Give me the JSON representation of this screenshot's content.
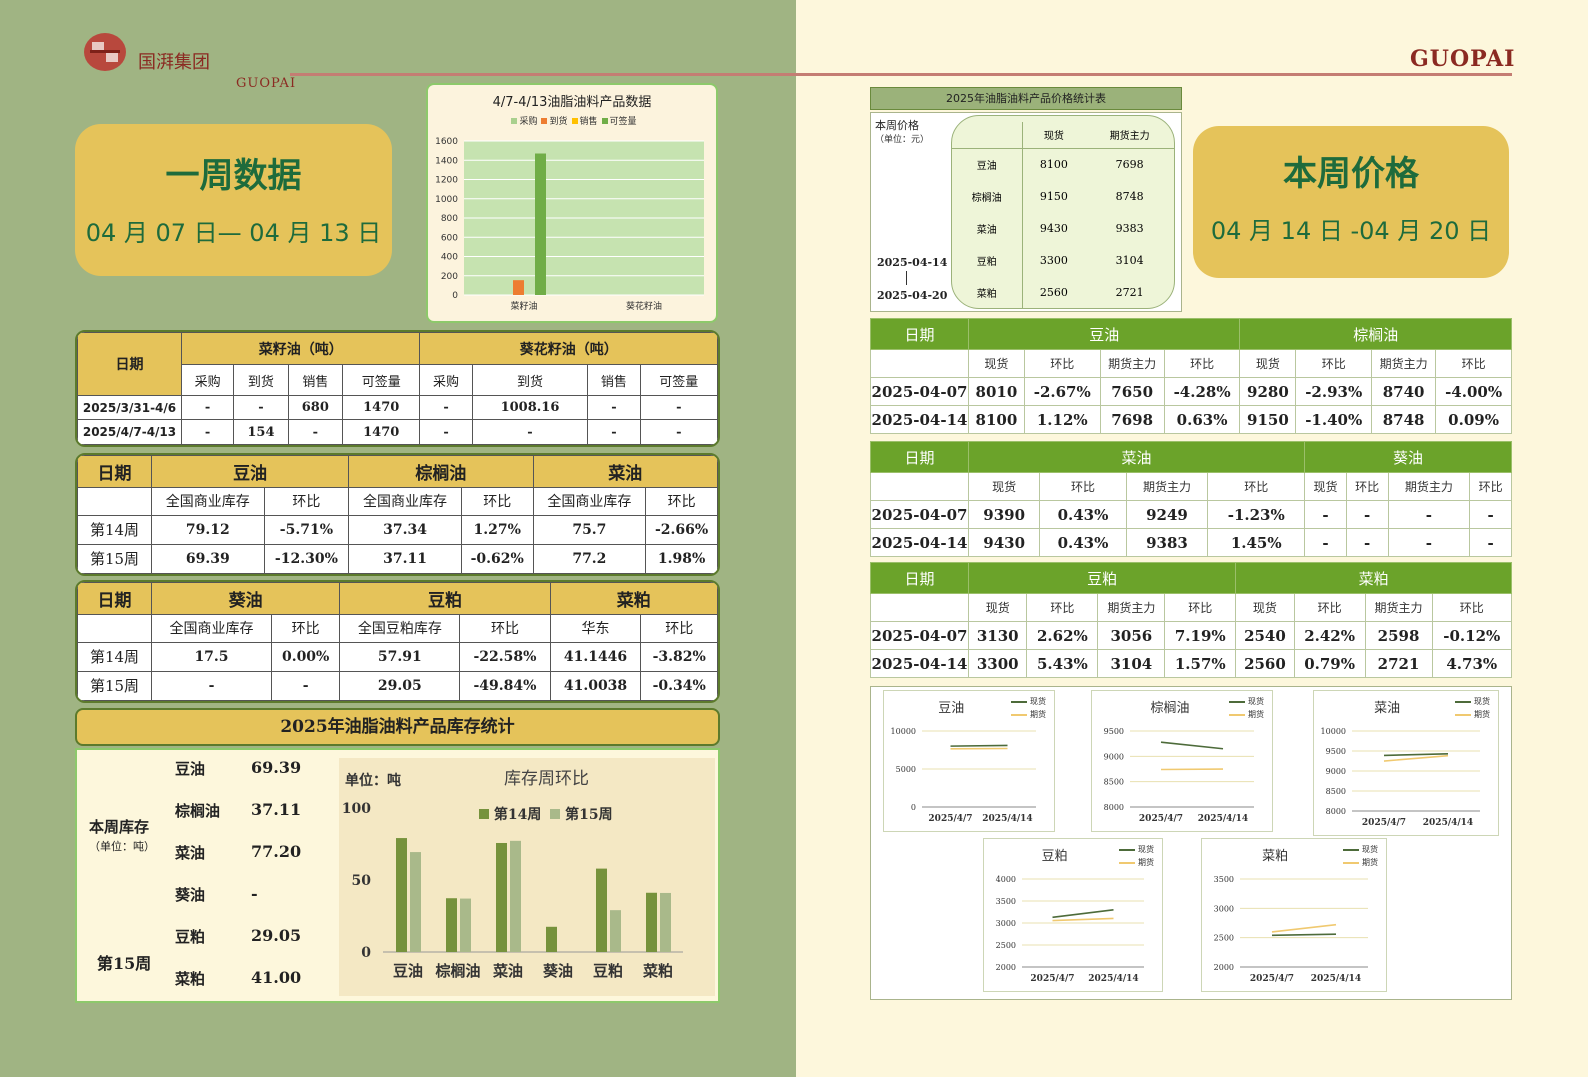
{
  "header": {
    "brand_cn": "国湃集团",
    "brand_en": "GUOPAI",
    "brand_right": "GUOPAI"
  },
  "week_badge": {
    "title": "一周数据",
    "dates": "04 月 07 日— 04 月 13 日"
  },
  "price_badge": {
    "title": "本周价格",
    "dates": "04 月 14 日 -04 月 20 日"
  },
  "product_chart": {
    "title": "4/7-4/13油脂油料产品数据",
    "legend": [
      "采购",
      "到货",
      "销售",
      "可签量"
    ],
    "colors": [
      "#a9d08e",
      "#ed7d31",
      "#ffc000",
      "#70ad47"
    ],
    "yticks": [
      "1600",
      "1400",
      "1200",
      "1000",
      "800",
      "600",
      "400",
      "200",
      "0"
    ],
    "chart_data": {
      "type": "bar",
      "categories": [
        "菜籽油",
        "葵花籽油"
      ],
      "series": [
        {
          "name": "采购",
          "values": [
            0,
            0
          ]
        },
        {
          "name": "到货",
          "values": [
            154,
            0
          ]
        },
        {
          "name": "销售",
          "values": [
            0,
            0
          ]
        },
        {
          "name": "可签量",
          "values": [
            1470,
            0
          ]
        }
      ],
      "ylim": [
        0,
        1600
      ]
    }
  },
  "trade_table": {
    "date_label": "日期",
    "group1": "菜籽油（吨）",
    "group2": "葵花籽油（吨）",
    "cols": [
      "采购",
      "到货",
      "销售",
      "可签量",
      "采购",
      "到货",
      "销售",
      "可签量"
    ],
    "rows": [
      {
        "date": "2025/3/31-4/6",
        "cells": [
          "-",
          "-",
          "680",
          "1470",
          "-",
          "1008.16",
          "-",
          "-"
        ]
      },
      {
        "date": "2025/4/7-4/13",
        "cells": [
          "-",
          "154",
          "-",
          "1470",
          "-",
          "-",
          "-",
          "-"
        ]
      }
    ]
  },
  "stock_table1": {
    "date_label": "日期",
    "groups": [
      "豆油",
      "棕榈油",
      "菜油"
    ],
    "cols": [
      "全国商业库存",
      "环比",
      "全国商业库存",
      "环比",
      "全国商业库存",
      "环比"
    ],
    "rows": [
      {
        "week": "第14周",
        "cells": [
          "79.12",
          "-5.71%",
          "37.34",
          "1.27%",
          "75.7",
          "-2.66%"
        ]
      },
      {
        "week": "第15周",
        "cells": [
          "69.39",
          "-12.30%",
          "37.11",
          "-0.62%",
          "77.2",
          "1.98%"
        ]
      }
    ]
  },
  "stock_table2": {
    "date_label": "日期",
    "groups": [
      "葵油",
      "豆粕",
      "菜粕"
    ],
    "cols": [
      "全国商业库存",
      "环比",
      "全国豆粕库存",
      "环比",
      "华东",
      "环比"
    ],
    "rows": [
      {
        "week": "第14周",
        "cells": [
          "17.5",
          "0.00%",
          "57.91",
          "-22.58%",
          "41.1446",
          "-3.82%"
        ]
      },
      {
        "week": "第15周",
        "cells": [
          "-",
          "-",
          "29.05",
          "-49.84%",
          "41.0038",
          "-0.34%"
        ]
      }
    ]
  },
  "inventory_panel": {
    "title": "2025年油脂油料产品库存统计",
    "label_week": "本周库存",
    "label_unit": "（单位：吨）",
    "label_week15": "第15周",
    "items": [
      {
        "name": "豆油",
        "value": "69.39"
      },
      {
        "name": "棕榈油",
        "value": "37.11"
      },
      {
        "name": "菜油",
        "value": "77.20"
      },
      {
        "name": "葵油",
        "value": "-"
      },
      {
        "name": "豆粕",
        "value": "29.05"
      },
      {
        "name": "菜粕",
        "value": "41.00"
      }
    ],
    "chart_title": "库存周环比",
    "unit": "单位：吨",
    "legend": [
      "第14周",
      "第15周"
    ],
    "yticks": [
      "100",
      "50",
      "0"
    ],
    "chart_data": {
      "type": "bar",
      "title": "库存周环比",
      "categories": [
        "豆油",
        "棕榈油",
        "菜油",
        "葵油",
        "豆粕",
        "菜粕"
      ],
      "series": [
        {
          "name": "第14周",
          "values": [
            79.12,
            37.34,
            75.7,
            17.5,
            57.91,
            41.14
          ]
        },
        {
          "name": "第15周",
          "values": [
            69.39,
            37.11,
            77.2,
            0,
            29.05,
            41.0
          ]
        }
      ],
      "ylim": [
        0,
        100
      ],
      "colors": [
        "#76923c",
        "#a9b98a"
      ]
    }
  },
  "price_stat": {
    "title": "2025年油脂油料产品价格统计表",
    "label": "本周价格",
    "unit": "（单位：元）",
    "date_from": "2025-04-14",
    "date_to": "2025-04-20",
    "cols": [
      "现货",
      "期货主力"
    ],
    "rows": [
      {
        "name": "豆油",
        "spot": "8100",
        "futures": "7698"
      },
      {
        "name": "棕榈油",
        "spot": "9150",
        "futures": "8748"
      },
      {
        "name": "菜油",
        "spot": "9430",
        "futures": "9383"
      },
      {
        "name": "豆粕",
        "spot": "3300",
        "futures": "3104"
      },
      {
        "name": "菜粕",
        "spot": "2560",
        "futures": "2721"
      }
    ]
  },
  "price_tables": [
    {
      "date_label": "日期",
      "groups": [
        "豆油",
        "棕榈油"
      ],
      "cols": [
        "现货",
        "环比",
        "期货主力",
        "环比",
        "现货",
        "环比",
        "期货主力",
        "环比"
      ],
      "rows": [
        {
          "date": "2025-04-07",
          "cells": [
            "8010",
            "-2.67%",
            "7650",
            "-4.28%",
            "9280",
            "-2.93%",
            "8740",
            "-4.00%"
          ]
        },
        {
          "date": "2025-04-14",
          "cells": [
            "8100",
            "1.12%",
            "7698",
            "0.63%",
            "9150",
            "-1.40%",
            "8748",
            "0.09%"
          ]
        }
      ]
    },
    {
      "date_label": "日期",
      "groups": [
        "菜油",
        "葵油"
      ],
      "cols": [
        "现货",
        "环比",
        "期货主力",
        "环比",
        "现货",
        "环比",
        "期货主力",
        "环比"
      ],
      "rows": [
        {
          "date": "2025-04-07",
          "cells": [
            "9390",
            "0.43%",
            "9249",
            "-1.23%",
            "-",
            "-",
            "-",
            "-"
          ]
        },
        {
          "date": "2025-04-14",
          "cells": [
            "9430",
            "0.43%",
            "9383",
            "1.45%",
            "-",
            "-",
            "-",
            "-"
          ]
        }
      ]
    },
    {
      "date_label": "日期",
      "groups": [
        "豆粕",
        "菜粕"
      ],
      "cols": [
        "现货",
        "环比",
        "期货主力",
        "环比",
        "现货",
        "环比",
        "期货主力",
        "环比"
      ],
      "rows": [
        {
          "date": "2025-04-07",
          "cells": [
            "3130",
            "2.62%",
            "3056",
            "7.19%",
            "2540",
            "2.42%",
            "2598",
            "-0.12%"
          ]
        },
        {
          "date": "2025-04-14",
          "cells": [
            "3300",
            "5.43%",
            "3104",
            "1.57%",
            "2560",
            "0.79%",
            "2721",
            "4.73%"
          ]
        }
      ]
    }
  ],
  "mini_charts": {
    "legend": [
      "现货",
      "期货"
    ],
    "x": [
      "2025/4/7",
      "2025/4/14"
    ],
    "colors": {
      "spot": "#4d6b3a",
      "futures": "#f0c970"
    },
    "chart_data": [
      {
        "type": "line",
        "title": "豆油",
        "x": [
          "2025/4/7",
          "2025/4/14"
        ],
        "series": [
          {
            "name": "现货",
            "values": [
              8010,
              8100
            ]
          },
          {
            "name": "期货",
            "values": [
              7650,
              7698
            ]
          }
        ],
        "ylim": [
          0,
          10000
        ],
        "yticks": [
          "10000",
          "5000",
          "0"
        ]
      },
      {
        "type": "line",
        "title": "棕榈油",
        "x": [
          "2025/4/7",
          "2025/4/14"
        ],
        "series": [
          {
            "name": "现货",
            "values": [
              9280,
              9150
            ]
          },
          {
            "name": "期货",
            "values": [
              8740,
              8748
            ]
          }
        ],
        "ylim": [
          8000,
          9500
        ],
        "yticks": [
          "9500",
          "9000",
          "8500",
          "8000"
        ]
      },
      {
        "type": "line",
        "title": "菜油",
        "x": [
          "2025/4/7",
          "2025/4/14"
        ],
        "series": [
          {
            "name": "现货",
            "values": [
              9390,
              9430
            ]
          },
          {
            "name": "期货",
            "values": [
              9249,
              9383
            ]
          }
        ],
        "ylim": [
          8000,
          10000
        ],
        "yticks": [
          "10000",
          "9500",
          "9000",
          "8500",
          "8000"
        ]
      },
      {
        "type": "line",
        "title": "豆粕",
        "x": [
          "2025/4/7",
          "2025/4/14"
        ],
        "series": [
          {
            "name": "现货",
            "values": [
              3130,
              3300
            ]
          },
          {
            "name": "期货",
            "values": [
              3056,
              3104
            ]
          }
        ],
        "ylim": [
          2000,
          4000
        ],
        "yticks": [
          "4000",
          "3500",
          "3000",
          "2500",
          "2000"
        ]
      },
      {
        "type": "line",
        "title": "菜粕",
        "x": [
          "2025/4/7",
          "2025/4/14"
        ],
        "series": [
          {
            "name": "现货",
            "values": [
              2540,
              2560
            ]
          },
          {
            "name": "期货",
            "values": [
              2598,
              2721
            ]
          }
        ],
        "ylim": [
          2000,
          3500
        ],
        "yticks": [
          "3500",
          "3000",
          "2500",
          "2000"
        ]
      }
    ]
  }
}
